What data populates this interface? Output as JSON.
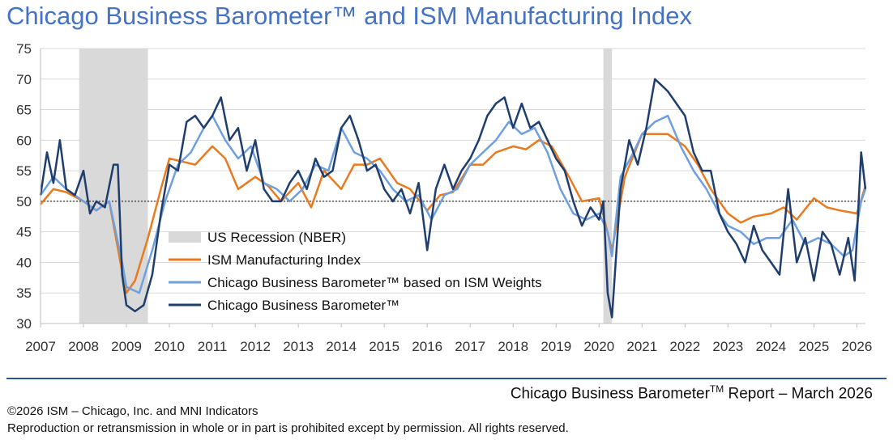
{
  "header": {
    "title": "Chicago Business Barometer™ and ISM Manufacturing Index"
  },
  "footer": {
    "report_main": "Chicago Business Barometer",
    "report_sup": "TM",
    "report_rest": " Report – March 2026",
    "copyright": "©2026 ISM – Chicago, Inc. and MNI Indicators",
    "rights": "Reproduction or retransmission in whole or in part is prohibited except by permission. All rights reserved."
  },
  "colors": {
    "title": "#4472c4",
    "rule": "#2e5597",
    "recession": "#d9d9d9",
    "ism": "#e97a1f",
    "weights": "#6f9fdc",
    "cbb": "#1f3e6e",
    "grid": "#d9d9d9"
  },
  "chart_data": {
    "type": "line",
    "title": "Chicago Business Barometer™ and ISM Manufacturing Index",
    "ylim": [
      30,
      75
    ],
    "yticks": [
      30,
      35,
      40,
      45,
      50,
      55,
      60,
      65,
      70,
      75
    ],
    "xlim": [
      2007.0,
      2026.2
    ],
    "xtick_labels": [
      "2007",
      "2008",
      "2009",
      "2010",
      "2011",
      "2012",
      "2013",
      "2014",
      "2015",
      "2016",
      "2017",
      "2018",
      "2019",
      "2020",
      "2021",
      "2022",
      "2023",
      "2024",
      "2025",
      "2026"
    ],
    "reference_line": 50,
    "grid": true,
    "legend_position": "center-left",
    "recessions": [
      {
        "label": "US Recession (NBER)",
        "start": 2007.9,
        "end": 2009.5
      },
      {
        "start": 2020.1,
        "end": 2020.3
      }
    ],
    "series": [
      {
        "name": "ISM Manufacturing Index",
        "key": "ism",
        "x": [
          2007.0,
          2007.3,
          2007.6,
          2008.0,
          2008.3,
          2008.6,
          2008.9,
          2009.0,
          2009.2,
          2009.5,
          2009.8,
          2010.0,
          2010.3,
          2010.6,
          2011.0,
          2011.3,
          2011.6,
          2012.0,
          2012.3,
          2012.6,
          2013.0,
          2013.3,
          2013.6,
          2014.0,
          2014.3,
          2014.6,
          2014.9,
          2015.3,
          2015.6,
          2016.0,
          2016.3,
          2016.6,
          2017.0,
          2017.3,
          2017.6,
          2018.0,
          2018.3,
          2018.6,
          2018.9,
          2019.3,
          2019.6,
          2020.0,
          2020.3,
          2020.6,
          2021.0,
          2021.3,
          2021.6,
          2022.0,
          2022.3,
          2022.6,
          2023.0,
          2023.3,
          2023.6,
          2024.0,
          2024.3,
          2024.6,
          2025.0,
          2025.3,
          2025.6,
          2026.0,
          2026.2
        ],
        "values": [
          49.5,
          52,
          51.5,
          50,
          48.5,
          50,
          38.5,
          35,
          37,
          44,
          52,
          57,
          56.5,
          56,
          59,
          57,
          52,
          54,
          52.5,
          50,
          53,
          49,
          55,
          52,
          56,
          56,
          57,
          53,
          52,
          48.5,
          51,
          51.5,
          56,
          56,
          58,
          59,
          58.5,
          60,
          59,
          54,
          50,
          50.5,
          42,
          54,
          61,
          61,
          61,
          59,
          56,
          52,
          48,
          46.5,
          47.5,
          48,
          49,
          47,
          50.5,
          49,
          48.5,
          48,
          52.5
        ]
      },
      {
        "name": "Chicago Business Barometer™ based on ISM Weights",
        "key": "weights",
        "x": [
          2007.0,
          2007.3,
          2007.6,
          2008.0,
          2008.3,
          2008.6,
          2008.9,
          2009.0,
          2009.3,
          2009.6,
          2009.9,
          2010.2,
          2010.5,
          2010.8,
          2011.0,
          2011.3,
          2011.6,
          2011.9,
          2012.2,
          2012.5,
          2012.8,
          2013.1,
          2013.4,
          2013.7,
          2014.0,
          2014.3,
          2014.6,
          2014.9,
          2015.2,
          2015.5,
          2015.8,
          2016.1,
          2016.4,
          2016.7,
          2017.0,
          2017.3,
          2017.6,
          2017.9,
          2018.2,
          2018.5,
          2018.8,
          2019.1,
          2019.4,
          2019.7,
          2020.0,
          2020.2,
          2020.3,
          2020.5,
          2020.8,
          2021.0,
          2021.3,
          2021.6,
          2021.9,
          2022.2,
          2022.5,
          2022.8,
          2023.0,
          2023.3,
          2023.6,
          2023.9,
          2024.2,
          2024.5,
          2024.8,
          2025.1,
          2025.4,
          2025.7,
          2025.9,
          2026.1,
          2026.2
        ],
        "values": [
          51,
          54,
          52,
          50,
          48.5,
          50,
          40,
          36,
          35,
          42,
          50,
          56,
          58,
          62,
          64,
          60,
          57,
          59,
          53,
          52,
          50,
          52,
          56,
          55,
          62,
          58,
          57,
          55,
          52,
          50,
          51,
          47,
          51,
          52,
          56,
          58,
          60,
          63,
          61,
          62,
          58,
          52,
          48,
          47,
          48,
          45,
          41,
          54,
          58,
          61,
          63,
          64,
          59,
          55,
          52,
          48,
          46,
          45,
          43,
          44,
          44,
          47,
          43,
          44,
          43,
          41,
          42,
          50,
          52
        ]
      },
      {
        "name": "Chicago Business Barometer™",
        "key": "cbb",
        "x": [
          2007.0,
          2007.15,
          2007.3,
          2007.45,
          2007.6,
          2007.8,
          2008.0,
          2008.15,
          2008.3,
          2008.5,
          2008.7,
          2008.8,
          2008.9,
          2009.0,
          2009.2,
          2009.4,
          2009.6,
          2009.8,
          2010.0,
          2010.2,
          2010.4,
          2010.6,
          2010.8,
          2011.0,
          2011.2,
          2011.4,
          2011.6,
          2011.8,
          2012.0,
          2012.2,
          2012.4,
          2012.6,
          2012.8,
          2013.0,
          2013.2,
          2013.4,
          2013.6,
          2013.8,
          2014.0,
          2014.2,
          2014.4,
          2014.6,
          2014.8,
          2015.0,
          2015.2,
          2015.4,
          2015.6,
          2015.8,
          2016.0,
          2016.2,
          2016.4,
          2016.6,
          2016.8,
          2017.0,
          2017.2,
          2017.4,
          2017.6,
          2017.8,
          2018.0,
          2018.2,
          2018.4,
          2018.6,
          2018.8,
          2019.0,
          2019.2,
          2019.4,
          2019.6,
          2019.8,
          2020.0,
          2020.1,
          2020.2,
          2020.3,
          2020.5,
          2020.7,
          2020.9,
          2021.1,
          2021.3,
          2021.45,
          2021.6,
          2021.8,
          2022.0,
          2022.2,
          2022.4,
          2022.6,
          2022.8,
          2023.0,
          2023.2,
          2023.4,
          2023.6,
          2023.8,
          2024.0,
          2024.2,
          2024.4,
          2024.6,
          2024.8,
          2025.0,
          2025.2,
          2025.4,
          2025.6,
          2025.8,
          2025.95,
          2026.1,
          2026.2
        ],
        "values": [
          51,
          58,
          53,
          60,
          52,
          51,
          55,
          48,
          50,
          49,
          56,
          56,
          38,
          33,
          32,
          33,
          38,
          48,
          56,
          55,
          63,
          64,
          62,
          64,
          67,
          60,
          62,
          55,
          60,
          52,
          50,
          50,
          53,
          55,
          52,
          57,
          54,
          55,
          62,
          64,
          60,
          55,
          56,
          52,
          50,
          52,
          48,
          53,
          42,
          52,
          56,
          52,
          55,
          57,
          60,
          64,
          66,
          67,
          62,
          66,
          62,
          63,
          60,
          57,
          55,
          50,
          46,
          49,
          47,
          50,
          35,
          31,
          52,
          60,
          56,
          62,
          70,
          69,
          68,
          66,
          64,
          58,
          55,
          55,
          48,
          45,
          43,
          40,
          46,
          42,
          40,
          38,
          52,
          40,
          44,
          37,
          45,
          43,
          38,
          44,
          37,
          58,
          52
        ]
      }
    ]
  },
  "legend": [
    {
      "key": "recession",
      "label": "US Recession (NBER)"
    },
    {
      "key": "ism",
      "label": "ISM Manufacturing Index"
    },
    {
      "key": "weights",
      "label": "Chicago Business Barometer™ based on ISM Weights"
    },
    {
      "key": "cbb",
      "label": "Chicago Business Barometer™"
    }
  ]
}
